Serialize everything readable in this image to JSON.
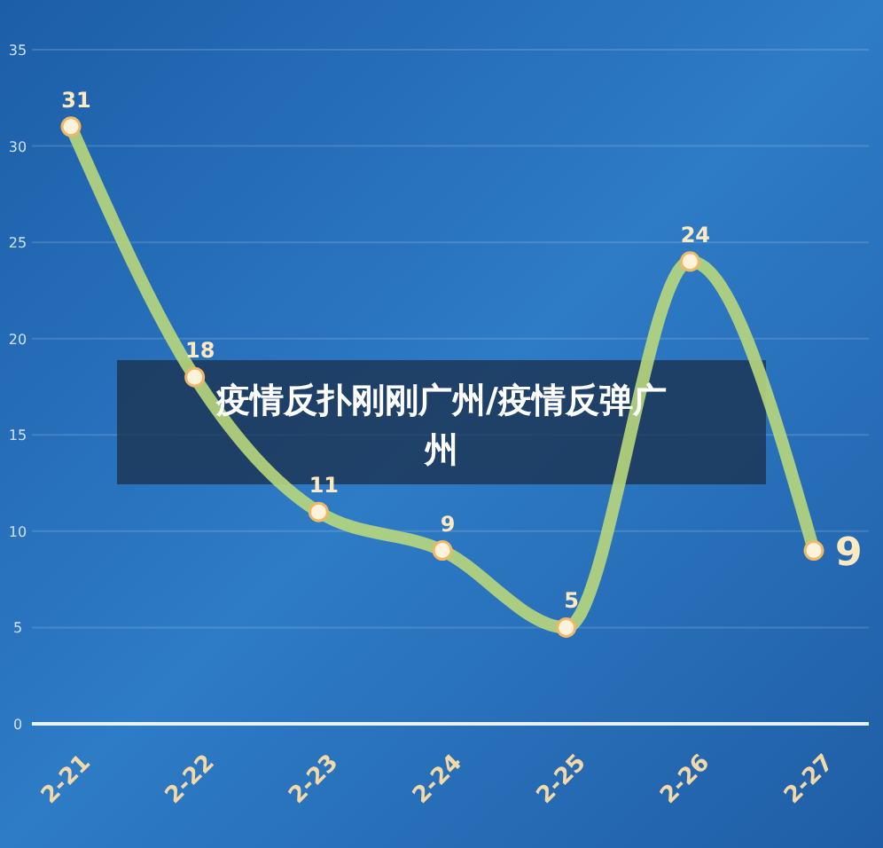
{
  "chart_data": {
    "type": "line",
    "title": "疫情反扑刚刚广州/疫情反弹广州",
    "categories": [
      "2-21",
      "2-22",
      "2-23",
      "2-24",
      "2-25",
      "2-26",
      "2-27"
    ],
    "series": [
      {
        "color": "#b8d77c",
        "values": [
          31,
          18,
          11,
          9,
          5,
          24,
          9
        ]
      }
    ],
    "ylim": [
      0,
      35
    ],
    "yticks": [
      0,
      5,
      10,
      15,
      20,
      25,
      30,
      35
    ],
    "grid": "y",
    "data_labels": true,
    "marker": "circle",
    "line_style": "solid"
  }
}
